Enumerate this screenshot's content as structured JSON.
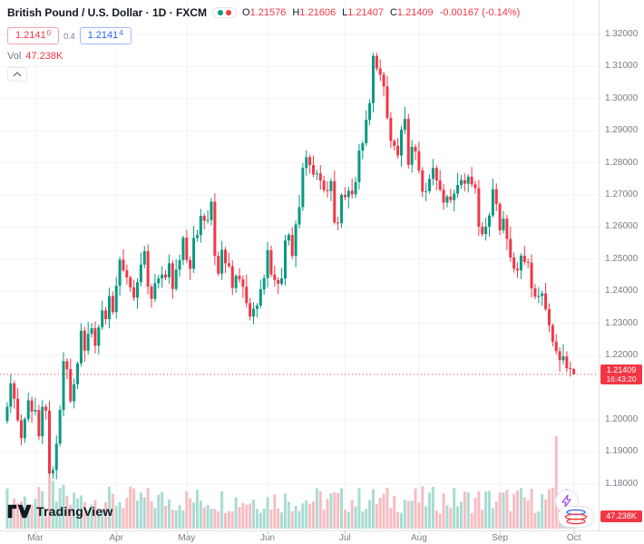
{
  "legend": {
    "symbol_title": "British Pound / U.S. Dollar · 1D · FXCM",
    "ohlc": {
      "open_label": "O",
      "open": "1.21576",
      "high_label": "H",
      "high": "1.21606",
      "low_label": "L",
      "low": "1.21407",
      "close_label": "C",
      "close": "1.21409",
      "change": "-0.00167 (-0.14%)"
    },
    "sell": {
      "main": "1.2141",
      "sup": "0"
    },
    "spread": "0.4",
    "buy": {
      "main": "1.2141",
      "sup": "4"
    },
    "vol_label": "Vol",
    "vol_value": "47.238K"
  },
  "axis": {
    "price_labels": [
      "1.32000",
      "1.31000",
      "1.30000",
      "1.29000",
      "1.28000",
      "1.27000",
      "1.26000",
      "1.25000",
      "1.24000",
      "1.23000",
      "1.22000",
      "1.20000",
      "1.19000",
      "1.18000"
    ],
    "last_price": "1.21409",
    "last_time": "16:43:20",
    "volume_badge": "47.238K"
  },
  "footer": {
    "logo_text": "TradingView"
  },
  "chart_data": {
    "type": "candlestick",
    "title": "British Pound / U.S. Dollar",
    "interval": "1D",
    "exchange": "FXCM",
    "ylim": [
      1.175,
      1.325
    ],
    "current_price": 1.21409,
    "last_candle": {
      "open": 1.21576,
      "high": 1.21606,
      "low": 1.21407,
      "close": 1.21409
    },
    "last_volume_k": 47.238,
    "months": [
      {
        "label": "Mar",
        "start_index": 8
      },
      {
        "label": "Apr",
        "start_index": 31
      },
      {
        "label": "May",
        "start_index": 51
      },
      {
        "label": "Jun",
        "start_index": 74
      },
      {
        "label": "Jul",
        "start_index": 96
      },
      {
        "label": "Aug",
        "start_index": 117
      },
      {
        "label": "Sep",
        "start_index": 140
      },
      {
        "label": "Oct",
        "start_index": 161
      }
    ],
    "first_open": 1.1995,
    "closes": [
      1.204,
      1.2113,
      1.2065,
      1.1998,
      1.1942,
      1.2002,
      1.206,
      1.2025,
      1.203,
      1.1948,
      1.204,
      1.2028,
      1.1832,
      1.1843,
      1.1925,
      1.203,
      1.2182,
      1.2157,
      1.2057,
      1.211,
      1.2175,
      1.2277,
      1.2215,
      1.2267,
      1.2285,
      1.223,
      1.2288,
      1.234,
      1.2313,
      1.2385,
      1.2335,
      1.2417,
      1.2498,
      1.2465,
      1.2443,
      1.2412,
      1.238,
      1.2428,
      1.2483,
      1.2525,
      1.2414,
      1.2376,
      1.2425,
      1.244,
      1.2452,
      1.2443,
      1.2487,
      1.2407,
      1.2467,
      1.2497,
      1.2567,
      1.2497,
      1.247,
      1.2566,
      1.2575,
      1.2635,
      1.262,
      1.2622,
      1.2679,
      1.251,
      1.2455,
      1.2529,
      1.2487,
      1.2478,
      1.241,
      1.2448,
      1.2437,
      1.2414,
      1.2363,
      1.2321,
      1.2345,
      1.2355,
      1.2406,
      1.2441,
      1.2528,
      1.2452,
      1.2435,
      1.2423,
      1.244,
      1.2558,
      1.2576,
      1.251,
      1.2608,
      1.2662,
      1.2784,
      1.2818,
      1.2793,
      1.2764,
      1.2767,
      1.2745,
      1.2715,
      1.2712,
      1.2743,
      1.2614,
      1.2612,
      1.27,
      1.2693,
      1.2713,
      1.2702,
      1.274,
      1.2838,
      1.2861,
      1.2934,
      1.2986,
      1.3133,
      1.3094,
      1.3075,
      1.3038,
      1.294,
      1.2868,
      1.2853,
      1.2823,
      1.2903,
      1.2937,
      1.2794,
      1.285,
      1.2836,
      1.2776,
      1.271,
      1.2712,
      1.275,
      1.2784,
      1.2745,
      1.2716,
      1.2676,
      1.2695,
      1.2684,
      1.2704,
      1.2731,
      1.2746,
      1.2735,
      1.2757,
      1.2733,
      1.2721,
      1.2601,
      1.2578,
      1.2601,
      1.2636,
      1.2718,
      1.2672,
      1.259,
      1.2626,
      1.2563,
      1.2505,
      1.247,
      1.2465,
      1.2511,
      1.2491,
      1.2489,
      1.2409,
      1.2383,
      1.2385,
      1.2393,
      1.2344,
      1.2294,
      1.2243,
      1.2213,
      1.2185,
      1.2197,
      1.216,
      1.2158,
      1.21409
    ],
    "wick_up": [
      14,
      28,
      9,
      33,
      18,
      6,
      24,
      12,
      38,
      16,
      21,
      8,
      30,
      11,
      26
    ],
    "wick_down": [
      10,
      22,
      31,
      8,
      17,
      27,
      12,
      35,
      15,
      6,
      20,
      29,
      9,
      24,
      13
    ],
    "clamp_high": 1.3143,
    "clamp_low": 1.1795,
    "volume_base_k": 30,
    "volume_amp_k": 55,
    "volume_overrides_k": {
      "12": 105,
      "13": 96,
      "16": 88,
      "156": 185,
      "157": 58,
      "161": 47.238
    },
    "colors": {
      "up": "#089981",
      "down": "#F23645",
      "vol_up": "#A9DCD2",
      "vol_down": "#F6BDC2",
      "grid": "#F0F3FA",
      "axis_text": "#787B86",
      "accent_blue": "#2962FF"
    }
  }
}
